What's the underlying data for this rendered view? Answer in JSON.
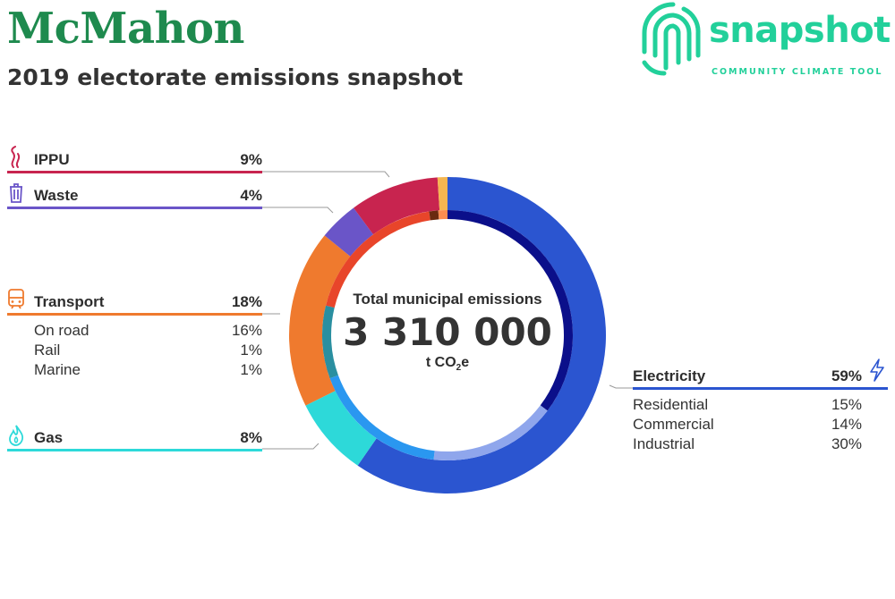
{
  "header": {
    "title": "McMahon",
    "subtitle": "2019 electorate emissions snapshot"
  },
  "logo": {
    "word": "snapshot",
    "tagline": "COMMUNITY CLIMATE TOOL",
    "color": "#22d09a"
  },
  "center": {
    "label": "Total municipal emissions",
    "value": "3 310 000",
    "unit_prefix": "t CO",
    "unit_sub": "2",
    "unit_suffix": "e"
  },
  "categories": {
    "ippu": {
      "name": "IPPU",
      "percent": "9%",
      "color": "#c8244f",
      "icon": "smoke-icon"
    },
    "waste": {
      "name": "Waste",
      "percent": "4%",
      "color": "#6a55c8",
      "icon": "trash-bin-icon"
    },
    "transport": {
      "name": "Transport",
      "percent": "18%",
      "color": "#ef7a2e",
      "icon": "train-icon",
      "subs": [
        {
          "name": "On road",
          "percent": "16%"
        },
        {
          "name": "Rail",
          "percent": "1%"
        },
        {
          "name": "Marine",
          "percent": "1%"
        }
      ]
    },
    "gas": {
      "name": "Gas",
      "percent": "8%",
      "color": "#2dd9d9",
      "icon": "flame-icon"
    },
    "electricity": {
      "name": "Electricity",
      "percent": "59%",
      "color": "#2b55d0",
      "icon": "lightning-icon",
      "subs": [
        {
          "name": "Residential",
          "percent": "15%"
        },
        {
          "name": "Commercial",
          "percent": "14%"
        },
        {
          "name": "Industrial",
          "percent": "30%"
        }
      ]
    }
  },
  "chart_data": {
    "type": "pie",
    "style": "donut",
    "title": "Total municipal emissions",
    "total": 3310000,
    "unit": "t CO2e",
    "series": [
      {
        "name": "Outer ring",
        "slices": [
          {
            "label": "Electricity",
            "value": 59,
            "color": "#2b55d0"
          },
          {
            "label": "Gas",
            "value": 8,
            "color": "#2dd9d9"
          },
          {
            "label": "Transport",
            "value": 18,
            "color": "#ef7a2e"
          },
          {
            "label": "Waste",
            "value": 4,
            "color": "#6a55c8"
          },
          {
            "label": "IPPU",
            "value": 9,
            "color": "#c8244f"
          },
          {
            "label": "",
            "value": 1,
            "color": "#f5b650"
          }
        ]
      },
      {
        "name": "Inner ring",
        "slices": [
          {
            "label": "Industrial",
            "value": 30,
            "color": "#0b0f8a"
          },
          {
            "label": "Commercial",
            "value": 14,
            "color": "#8fa6ec"
          },
          {
            "label": "Residential",
            "value": 15,
            "color": "#2a97f0"
          },
          {
            "label": "Gas",
            "value": 8,
            "color": "#2a8fa0"
          },
          {
            "label": "On road",
            "value": 16,
            "color": "#e8452a"
          },
          {
            "label": "Rail",
            "value": 1,
            "color": "#6a2a10"
          },
          {
            "label": "Marine",
            "value": 1,
            "color": "#fb8c50"
          }
        ]
      }
    ]
  }
}
